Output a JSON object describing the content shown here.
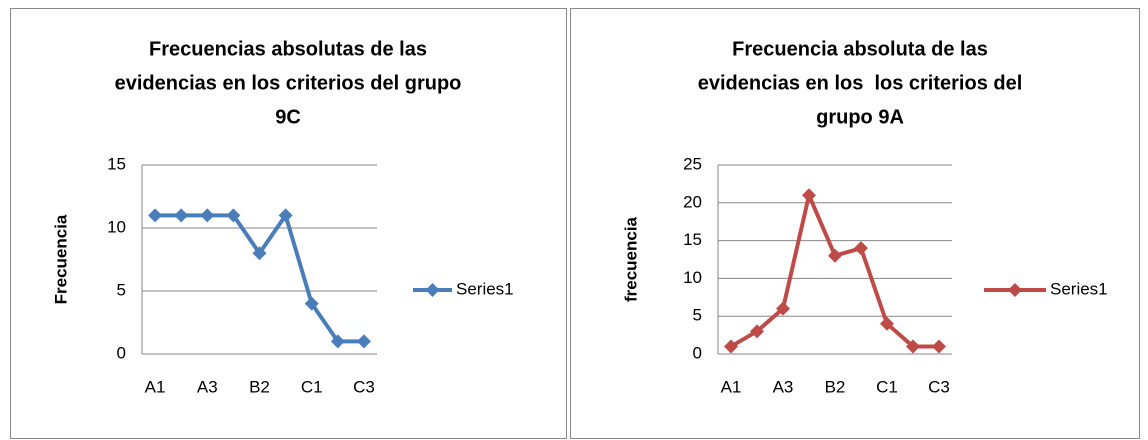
{
  "chart_data": [
    {
      "type": "line",
      "title": [
        "Frecuencias absolutas de las",
        "evidencias en los criterios del grupo",
        "9C"
      ],
      "ylabel": "Frecuencia",
      "categories": [
        "A1",
        null,
        "A3",
        null,
        "B2",
        null,
        "C1",
        null,
        "C3"
      ],
      "series": [
        {
          "name": "Series1",
          "color": "#4a7ebb",
          "values": [
            11,
            11,
            11,
            11,
            8,
            11,
            4,
            1,
            1
          ]
        }
      ],
      "ylim": [
        0,
        15
      ],
      "yticks": [
        0,
        5,
        10,
        15
      ],
      "grid": true,
      "legend": "right"
    },
    {
      "type": "line",
      "title": [
        "Frecuencia absoluta de las",
        "evidencias en los  los criterios del",
        "grupo 9A"
      ],
      "ylabel": "frecuencia",
      "categories": [
        "A1",
        null,
        "A3",
        null,
        "B2",
        null,
        "C1",
        null,
        "C3"
      ],
      "series": [
        {
          "name": "Series1",
          "color": "#be4b48",
          "values": [
            1,
            3,
            6,
            21,
            13,
            14,
            4,
            1,
            1
          ]
        }
      ],
      "ylim": [
        0,
        25
      ],
      "yticks": [
        0,
        5,
        10,
        15,
        20,
        25
      ],
      "grid": true,
      "legend": "right"
    }
  ]
}
